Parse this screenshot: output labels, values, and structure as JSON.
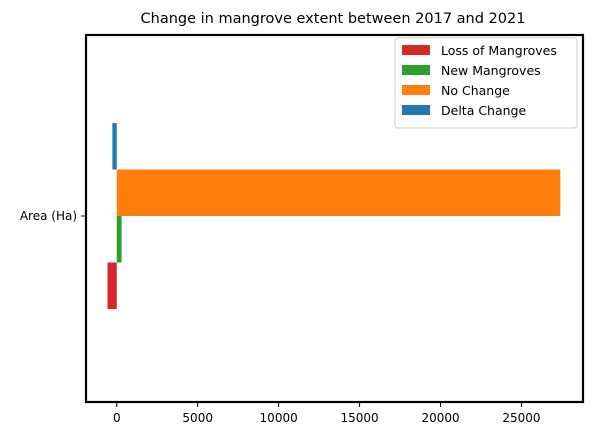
{
  "chart_data": {
    "type": "bar",
    "orientation": "horizontal",
    "title": "Change in mangrove extent between 2017 and 2021",
    "xlabel": "",
    "ylabel": "",
    "categories": [
      "Area (Ha)"
    ],
    "xlim": [
      -1900,
      28800
    ],
    "xticks": [
      0,
      5000,
      10000,
      15000,
      20000,
      25000
    ],
    "xtick_labels": [
      "0",
      "5000",
      "10000",
      "15000",
      "20000",
      "25000"
    ],
    "grid": false,
    "legend_position": "top-right",
    "series": [
      {
        "name": "Loss of Mangroves",
        "values": [
          -570
        ],
        "color": "#d62728"
      },
      {
        "name": "New Mangroves",
        "values": [
          300
        ],
        "color": "#2ca02c"
      },
      {
        "name": "No Change",
        "values": [
          27400
        ],
        "color": "#ff7f0e"
      },
      {
        "name": "Delta Change",
        "values": [
          -270
        ],
        "color": "#1f77b4"
      }
    ]
  }
}
